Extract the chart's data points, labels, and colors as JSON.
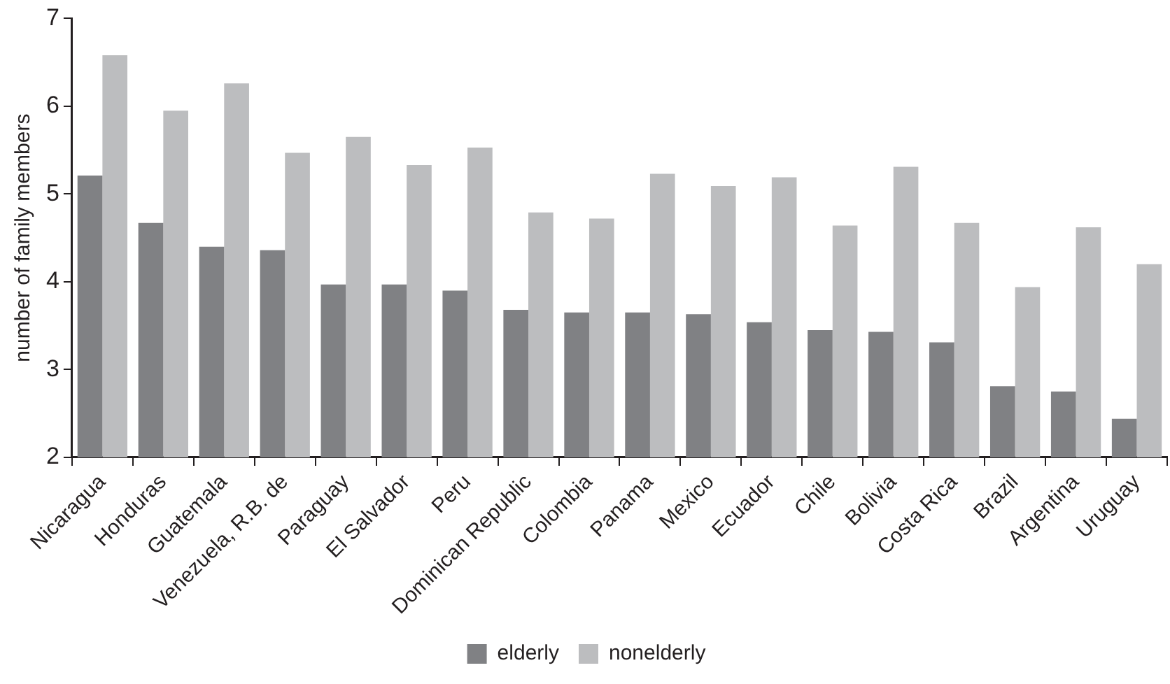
{
  "chart_data": {
    "type": "bar",
    "ylabel": "number of family members",
    "categories": [
      "Nicaragua",
      "Honduras",
      "Guatemala",
      "Venezuela, R.B. de",
      "Paraguay",
      "El Salvador",
      "Peru",
      "Dominican Republic",
      "Colombia",
      "Panama",
      "Mexico",
      "Ecuador",
      "Chile",
      "Bolivia",
      "Costa Rica",
      "Brazil",
      "Argentina",
      "Uruguay"
    ],
    "series": [
      {
        "name": "elderly",
        "color": "#808184",
        "values": [
          5.21,
          4.67,
          4.4,
          4.36,
          3.97,
          3.97,
          3.9,
          3.68,
          3.65,
          3.65,
          3.63,
          3.54,
          3.45,
          3.43,
          3.31,
          2.81,
          2.75,
          2.44
        ]
      },
      {
        "name": "nonelderly",
        "color": "#bcbdbf",
        "values": [
          6.58,
          5.95,
          6.26,
          5.47,
          5.65,
          5.33,
          5.53,
          4.79,
          4.72,
          5.23,
          5.09,
          5.19,
          4.64,
          5.31,
          4.67,
          3.94,
          4.62,
          4.2
        ]
      }
    ],
    "ylim": [
      2,
      7
    ],
    "yticks": [
      2,
      3,
      4,
      5,
      6,
      7
    ],
    "grid": false,
    "legend": "bottom"
  }
}
